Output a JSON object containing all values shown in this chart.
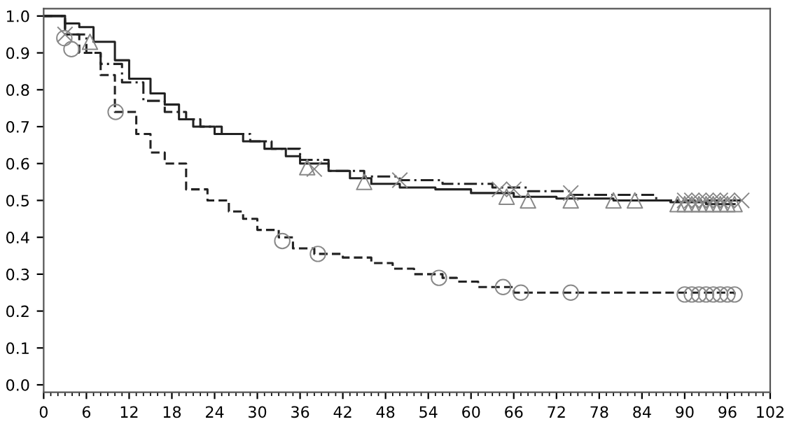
{
  "chart_data": {
    "type": "step",
    "xlim": [
      0,
      102
    ],
    "xticks": [
      0,
      6,
      12,
      18,
      24,
      30,
      36,
      42,
      48,
      54,
      60,
      66,
      72,
      78,
      84,
      90,
      96,
      102
    ],
    "ylim": [
      -0.02,
      1.02
    ],
    "yticks": [
      {
        "value": 0,
        "label": "0.0"
      },
      {
        "value": 0.1,
        "label": "0.1"
      },
      {
        "value": 0.2,
        "label": "0.2"
      },
      {
        "value": 0.3,
        "label": "0.3"
      },
      {
        "value": 0.4,
        "label": "0.4"
      },
      {
        "value": 0.5,
        "label": "0.5"
      },
      {
        "value": 0.6,
        "label": "0.6"
      },
      {
        "value": 0.7,
        "label": "0.7"
      },
      {
        "value": 0.8,
        "label": "0.8"
      },
      {
        "value": 0.9,
        "label": "0.9"
      },
      {
        "value": 1,
        "label": "1.0"
      }
    ],
    "grid": false,
    "series": [
      {
        "line_style": "solid",
        "marker": "none",
        "color": "#222222",
        "x": [
          0,
          3,
          5,
          7,
          10,
          12,
          15,
          17,
          19,
          21,
          24,
          28,
          31,
          34,
          36,
          40,
          43,
          46,
          50,
          55,
          60,
          66,
          72,
          80,
          88,
          93,
          97
        ],
        "values": [
          1.0,
          0.98,
          0.97,
          0.93,
          0.88,
          0.83,
          0.79,
          0.76,
          0.72,
          0.7,
          0.68,
          0.66,
          0.64,
          0.62,
          0.6,
          0.58,
          0.56,
          0.545,
          0.535,
          0.53,
          0.52,
          0.51,
          0.505,
          0.5,
          0.495,
          0.49,
          0.49
        ]
      },
      {
        "line_style": "dashdot",
        "marker": "none",
        "color": "#222222",
        "x": [
          0,
          3,
          6,
          8,
          11,
          14,
          17,
          20,
          22,
          25,
          29,
          32,
          36,
          40,
          45,
          50,
          56,
          63,
          68,
          74,
          86,
          98
        ],
        "values": [
          1.0,
          0.95,
          0.9,
          0.87,
          0.82,
          0.77,
          0.74,
          0.72,
          0.7,
          0.68,
          0.66,
          0.64,
          0.61,
          0.58,
          0.565,
          0.555,
          0.545,
          0.535,
          0.525,
          0.515,
          0.5,
          0.5
        ]
      },
      {
        "line_style": "dashed",
        "marker": "none",
        "color": "#222222",
        "x": [
          0,
          3,
          5,
          8,
          10,
          13,
          15,
          17,
          20,
          23,
          26,
          28,
          30,
          33,
          35,
          38,
          42,
          46,
          49,
          52,
          56,
          58,
          61,
          66,
          97
        ],
        "values": [
          1.0,
          0.95,
          0.9,
          0.84,
          0.74,
          0.68,
          0.63,
          0.6,
          0.53,
          0.5,
          0.47,
          0.45,
          0.42,
          0.4,
          0.37,
          0.355,
          0.345,
          0.33,
          0.315,
          0.3,
          0.29,
          0.28,
          0.265,
          0.25,
          0.245
        ]
      },
      {
        "type": "scatter",
        "marker": "triangle",
        "color": "#888888",
        "x": [
          6.5,
          37,
          45,
          65,
          68,
          74,
          80,
          83,
          89,
          90,
          91,
          92,
          93,
          94,
          95,
          96,
          97
        ],
        "values": [
          0.93,
          0.59,
          0.55,
          0.51,
          0.5,
          0.5,
          0.5,
          0.5,
          0.49,
          0.49,
          0.49,
          0.49,
          0.49,
          0.49,
          0.49,
          0.49,
          0.49
        ]
      },
      {
        "type": "scatter",
        "marker": "cross",
        "color": "#888888",
        "x": [
          3,
          38,
          50,
          64,
          66,
          74,
          90,
          91,
          92,
          93,
          94,
          95,
          96,
          98
        ],
        "values": [
          0.95,
          0.585,
          0.555,
          0.53,
          0.53,
          0.52,
          0.5,
          0.5,
          0.5,
          0.5,
          0.5,
          0.5,
          0.5,
          0.5
        ]
      },
      {
        "type": "scatter",
        "marker": "circle",
        "color": "#888888",
        "x": [
          2.9,
          3.9,
          10.1,
          33.5,
          38.5,
          55.5,
          64.5,
          67,
          74,
          90,
          91,
          92,
          93,
          94,
          95,
          96,
          97
        ],
        "values": [
          0.94,
          0.91,
          0.74,
          0.39,
          0.355,
          0.29,
          0.265,
          0.25,
          0.25,
          0.245,
          0.245,
          0.245,
          0.245,
          0.245,
          0.245,
          0.245,
          0.245
        ]
      }
    ]
  }
}
